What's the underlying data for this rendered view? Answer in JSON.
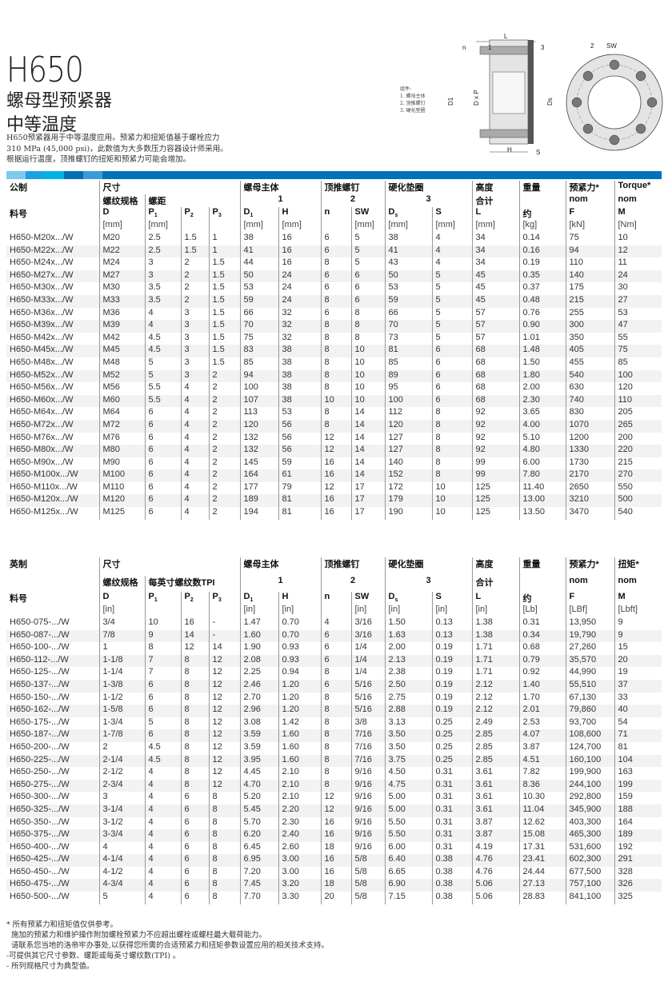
{
  "header": {
    "title": "H650",
    "subtitle1": "螺母型预紧器",
    "subtitle2": "中等温度",
    "intro": [
      "H650预紧器用于中等温度应用。预紧力和扭矩值基于螺栓应力",
      "310 MPa (45,000 psi)，此数值为大多数压力容器设计师采用。",
      "根据运行温度，顶推螺钉的扭矩和预紧力可能会增加。"
    ]
  },
  "diagram": {
    "legend": [
      "组件:",
      "1. 螺母主体",
      "2. 顶推螺钉",
      "3. 硬化垫圈"
    ],
    "labels": {
      "L": "L",
      "n": "n",
      "one": "1",
      "three": "3",
      "D1": "D1",
      "DxP": "D x P",
      "Ds": "Ds",
      "H": "H",
      "S": "S",
      "two": "2",
      "SW": "SW"
    }
  },
  "colors": {
    "accent": "#0072bb",
    "bar_segments": [
      "#7fc8ef",
      "#1aa3e0",
      "#00b2ea",
      "#006fb5",
      "#3a9bd6"
    ]
  },
  "metric": {
    "head": {
      "c0": "公制",
      "size": "尺寸",
      "nut": "螺母主体",
      "push": "顶推螺钉",
      "washer": "硬化垫圈",
      "height": "高度",
      "weight": "重量",
      "preload": "预紧力*",
      "torque": "Torque*",
      "thread": "螺纹规格",
      "pitch": "螺距",
      "g1": "1",
      "g2": "2",
      "g3": "3",
      "total": "合计",
      "nomF": "nom",
      "nomM": "nom",
      "part": "料号",
      "D": "D",
      "P": "P",
      "D1": "D",
      "H": "H",
      "n": "n",
      "SW": "SW",
      "Ds": "D",
      "S": "S",
      "L": "L",
      "approx": "约",
      "F": "F",
      "M": "M",
      "units": [
        "[mm]",
        "[mm]",
        "",
        "",
        "[mm]",
        "[mm]",
        "",
        "[mm]",
        "[mm]",
        "[mm]",
        "[mm]",
        "[kg]",
        "[kN]",
        "[Nm]"
      ]
    },
    "rows": [
      [
        "H650-M20x.../W",
        "M20",
        "2.5",
        "1.5",
        "1",
        "38",
        "16",
        "6",
        "5",
        "38",
        "4",
        "34",
        "0.14",
        "75",
        "10"
      ],
      [
        "H650-M22x.../W",
        "M22",
        "2.5",
        "1.5",
        "1",
        "41",
        "16",
        "6",
        "5",
        "41",
        "4",
        "34",
        "0.16",
        "94",
        "12"
      ],
      [
        "H650-M24x.../W",
        "M24",
        "3",
        "2",
        "1.5",
        "44",
        "16",
        "8",
        "5",
        "43",
        "4",
        "34",
        "0.19",
        "110",
        "11"
      ],
      [
        "H650-M27x.../W",
        "M27",
        "3",
        "2",
        "1.5",
        "50",
        "24",
        "6",
        "6",
        "50",
        "5",
        "45",
        "0.35",
        "140",
        "24"
      ],
      [
        "H650-M30x.../W",
        "M30",
        "3.5",
        "2",
        "1.5",
        "53",
        "24",
        "6",
        "6",
        "53",
        "5",
        "45",
        "0.37",
        "175",
        "30"
      ],
      [
        "H650-M33x.../W",
        "M33",
        "3.5",
        "2",
        "1.5",
        "59",
        "24",
        "8",
        "6",
        "59",
        "5",
        "45",
        "0.48",
        "215",
        "27"
      ],
      [
        "H650-M36x.../W",
        "M36",
        "4",
        "3",
        "1.5",
        "66",
        "32",
        "6",
        "8",
        "66",
        "5",
        "57",
        "0.76",
        "255",
        "53"
      ],
      [
        "H650-M39x.../W",
        "M39",
        "4",
        "3",
        "1.5",
        "70",
        "32",
        "8",
        "8",
        "70",
        "5",
        "57",
        "0.90",
        "300",
        "47"
      ],
      [
        "H650-M42x.../W",
        "M42",
        "4.5",
        "3",
        "1.5",
        "75",
        "32",
        "8",
        "8",
        "73",
        "5",
        "57",
        "1.01",
        "350",
        "55"
      ],
      [
        "H650-M45x.../W",
        "M45",
        "4.5",
        "3",
        "1.5",
        "83",
        "38",
        "8",
        "10",
        "81",
        "6",
        "68",
        "1.48",
        "405",
        "75"
      ],
      [
        "H650-M48x.../W",
        "M48",
        "5",
        "3",
        "1.5",
        "85",
        "38",
        "8",
        "10",
        "85",
        "6",
        "68",
        "1.50",
        "455",
        "85"
      ],
      [
        "H650-M52x.../W",
        "M52",
        "5",
        "3",
        "2",
        "94",
        "38",
        "8",
        "10",
        "89",
        "6",
        "68",
        "1.80",
        "540",
        "100"
      ],
      [
        "H650-M56x.../W",
        "M56",
        "5.5",
        "4",
        "2",
        "100",
        "38",
        "8",
        "10",
        "95",
        "6",
        "68",
        "2.00",
        "630",
        "120"
      ],
      [
        "H650-M60x.../W",
        "M60",
        "5.5",
        "4",
        "2",
        "107",
        "38",
        "10",
        "10",
        "100",
        "6",
        "68",
        "2.30",
        "740",
        "110"
      ],
      [
        "H650-M64x.../W",
        "M64",
        "6",
        "4",
        "2",
        "113",
        "53",
        "8",
        "14",
        "112",
        "8",
        "92",
        "3.65",
        "830",
        "205"
      ],
      [
        "H650-M72x.../W",
        "M72",
        "6",
        "4",
        "2",
        "120",
        "56",
        "8",
        "14",
        "120",
        "8",
        "92",
        "4.00",
        "1070",
        "265"
      ],
      [
        "H650-M76x.../W",
        "M76",
        "6",
        "4",
        "2",
        "132",
        "56",
        "12",
        "14",
        "127",
        "8",
        "92",
        "5.10",
        "1200",
        "200"
      ],
      [
        "H650-M80x.../W",
        "M80",
        "6",
        "4",
        "2",
        "132",
        "56",
        "12",
        "14",
        "127",
        "8",
        "92",
        "4.80",
        "1330",
        "220"
      ],
      [
        "H650-M90x.../W",
        "M90",
        "6",
        "4",
        "2",
        "145",
        "59",
        "16",
        "14",
        "140",
        "8",
        "99",
        "6.00",
        "1730",
        "215"
      ],
      [
        "H650-M100x.../W",
        "M100",
        "6",
        "4",
        "2",
        "164",
        "61",
        "16",
        "14",
        "152",
        "8",
        "99",
        "7.80",
        "2170",
        "270"
      ],
      [
        "H650-M110x.../W",
        "M110",
        "6",
        "4",
        "2",
        "177",
        "79",
        "12",
        "17",
        "172",
        "10",
        "125",
        "11.40",
        "2650",
        "550"
      ],
      [
        "H650-M120x.../W",
        "M120",
        "6",
        "4",
        "2",
        "189",
        "81",
        "16",
        "17",
        "179",
        "10",
        "125",
        "13.00",
        "3210",
        "500"
      ],
      [
        "H650-M125x.../W",
        "M125",
        "6",
        "4",
        "2",
        "194",
        "81",
        "16",
        "17",
        "190",
        "10",
        "125",
        "13.50",
        "3470",
        "540"
      ]
    ]
  },
  "imperial": {
    "head": {
      "c0": "英制",
      "size": "尺寸",
      "nut": "螺母主体",
      "push": "顶推螺钉",
      "washer": "硬化垫圈",
      "height": "高度",
      "weight": "重量",
      "preload": "预紧力*",
      "torque": "扭矩*",
      "thread": "螺纹规格",
      "pitch": "每英寸螺纹数TPI",
      "g1": "1",
      "g2": "2",
      "g3": "3",
      "total": "合计",
      "nomF": "nom",
      "nomM": "nom",
      "part": "料号",
      "D": "D",
      "P": "P",
      "D1": "D",
      "H": "H",
      "n": "n",
      "SW": "SW",
      "Ds": "D",
      "S": "S",
      "L": "L",
      "approx": "约",
      "F": "F",
      "M": "M",
      "units": [
        "[in]",
        "",
        "",
        "",
        "[in]",
        "[in]",
        "",
        "[in]",
        "[in]",
        "[in]",
        "[in]",
        "[Lb]",
        "[LBf]",
        "[Lbft]"
      ]
    },
    "rows": [
      [
        "H650-075-.../W",
        "3/4",
        "10",
        "16",
        "-",
        "1.47",
        "0.70",
        "4",
        "3/16",
        "1.50",
        "0.13",
        "1.38",
        "0.31",
        "13,950",
        "9"
      ],
      [
        "H650-087-.../W",
        "7/8",
        "9",
        "14",
        "-",
        "1.60",
        "0.70",
        "6",
        "3/16",
        "1.63",
        "0.13",
        "1.38",
        "0.34",
        "19,790",
        "9"
      ],
      [
        "H650-100-.../W",
        "1",
        "8",
        "12",
        "14",
        "1.90",
        "0.93",
        "6",
        "1/4",
        "2.00",
        "0.19",
        "1.71",
        "0.68",
        "27,260",
        "15"
      ],
      [
        "H650-112-.../W",
        "1-1/8",
        "7",
        "8",
        "12",
        "2.08",
        "0.93",
        "6",
        "1/4",
        "2.13",
        "0.19",
        "1.71",
        "0.79",
        "35,570",
        "20"
      ],
      [
        "H650-125-.../W",
        "1-1/4",
        "7",
        "8",
        "12",
        "2.25",
        "0.94",
        "8",
        "1/4",
        "2.38",
        "0.19",
        "1.71",
        "0.92",
        "44,990",
        "19"
      ],
      [
        "H650-137-.../W",
        "1-3/8",
        "6",
        "8",
        "12",
        "2.46",
        "1.20",
        "6",
        "5/16",
        "2.50",
        "0.19",
        "2.12",
        "1.40",
        "55,510",
        "37"
      ],
      [
        "H650-150-.../W",
        "1-1/2",
        "6",
        "8",
        "12",
        "2.70",
        "1.20",
        "8",
        "5/16",
        "2.75",
        "0.19",
        "2.12",
        "1.70",
        "67,130",
        "33"
      ],
      [
        "H650-162-.../W",
        "1-5/8",
        "6",
        "8",
        "12",
        "2.96",
        "1.20",
        "8",
        "5/16",
        "2.88",
        "0.19",
        "2.12",
        "2.01",
        "79,860",
        "40"
      ],
      [
        "H650-175-.../W",
        "1-3/4",
        "5",
        "8",
        "12",
        "3.08",
        "1.42",
        "8",
        "3/8",
        "3.13",
        "0.25",
        "2.49",
        "2.53",
        "93,700",
        "54"
      ],
      [
        "H650-187-.../W",
        "1-7/8",
        "6",
        "8",
        "12",
        "3.59",
        "1.60",
        "8",
        "7/16",
        "3.50",
        "0.25",
        "2.85",
        "4.07",
        "108,600",
        "71"
      ],
      [
        "H650-200-.../W",
        "2",
        "4.5",
        "8",
        "12",
        "3.59",
        "1.60",
        "8",
        "7/16",
        "3.50",
        "0.25",
        "2.85",
        "3.87",
        "124,700",
        "81"
      ],
      [
        "H650-225-.../W",
        "2-1/4",
        "4.5",
        "8",
        "12",
        "3.95",
        "1.60",
        "8",
        "7/16",
        "3.75",
        "0.25",
        "2.85",
        "4.51",
        "160,100",
        "104"
      ],
      [
        "H650-250-.../W",
        "2-1/2",
        "4",
        "8",
        "12",
        "4.45",
        "2.10",
        "8",
        "9/16",
        "4.50",
        "0.31",
        "3.61",
        "7.82",
        "199,900",
        "163"
      ],
      [
        "H650-275-.../W",
        "2-3/4",
        "4",
        "8",
        "12",
        "4.70",
        "2.10",
        "8",
        "9/16",
        "4.75",
        "0.31",
        "3.61",
        "8.36",
        "244,100",
        "199"
      ],
      [
        "H650-300-.../W",
        "3",
        "4",
        "6",
        "8",
        "5.20",
        "2.10",
        "12",
        "9/16",
        "5.00",
        "0.31",
        "3.61",
        "10.30",
        "292,800",
        "159"
      ],
      [
        "H650-325-.../W",
        "3-1/4",
        "4",
        "6",
        "8",
        "5.45",
        "2.20",
        "12",
        "9/16",
        "5.00",
        "0.31",
        "3.61",
        "11.04",
        "345,900",
        "188"
      ],
      [
        "H650-350-.../W",
        "3-1/2",
        "4",
        "6",
        "8",
        "5.70",
        "2.30",
        "16",
        "9/16",
        "5.50",
        "0.31",
        "3.87",
        "12.62",
        "403,300",
        "164"
      ],
      [
        "H650-375-.../W",
        "3-3/4",
        "4",
        "6",
        "8",
        "6.20",
        "2.40",
        "16",
        "9/16",
        "5.50",
        "0.31",
        "3.87",
        "15.08",
        "465,300",
        "189"
      ],
      [
        "H650-400-.../W",
        "4",
        "4",
        "6",
        "8",
        "6.45",
        "2.60",
        "18",
        "9/16",
        "6.00",
        "0.31",
        "4.19",
        "17.31",
        "531,600",
        "192"
      ],
      [
        "H650-425-.../W",
        "4-1/4",
        "4",
        "6",
        "8",
        "6.95",
        "3.00",
        "16",
        "5/8",
        "6.40",
        "0.38",
        "4.76",
        "23.41",
        "602,300",
        "291"
      ],
      [
        "H650-450-.../W",
        "4-1/2",
        "4",
        "6",
        "8",
        "7.20",
        "3.00",
        "16",
        "5/8",
        "6.65",
        "0.38",
        "4.76",
        "24.44",
        "677,500",
        "328"
      ],
      [
        "H650-475-.../W",
        "4-3/4",
        "4",
        "6",
        "8",
        "7.45",
        "3.20",
        "18",
        "5/8",
        "6.90",
        "0.38",
        "5.06",
        "27.13",
        "757,100",
        "326"
      ],
      [
        "H650-500-.../W",
        "5",
        "4",
        "6",
        "8",
        "7.70",
        "3.30",
        "20",
        "5/8",
        "7.15",
        "0.38",
        "5.06",
        "28.83",
        "841,100",
        "325"
      ]
    ]
  },
  "notes": [
    "* 所有预紧力和扭矩值仅供参考。",
    "  施加的预紧力和维护操作附加螺栓预紧力不应超出螺栓或螺柱最大载荷能力。",
    "  请联系您当地的洛帝牢办事处,以获得您所需的合适预紧力和扭矩参数设置应用的相关技术支持。",
    "-可提供其它尺寸参数、螺距或每英寸螺纹数(TPI) 。",
    "- 所列规格尺寸为典型值。"
  ]
}
